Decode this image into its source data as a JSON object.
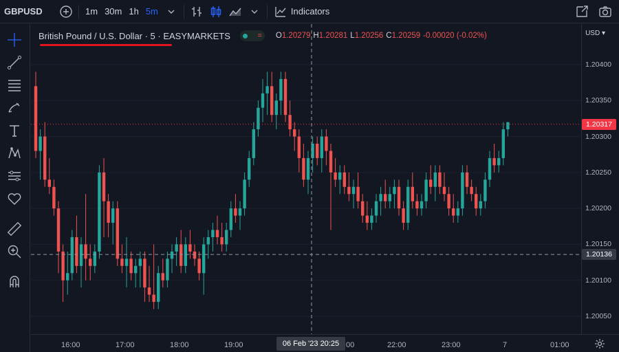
{
  "header": {
    "symbol": "GBPUSD",
    "intervals": [
      {
        "label": "1m",
        "active": false
      },
      {
        "label": "30m",
        "active": false
      },
      {
        "label": "1h",
        "active": false
      },
      {
        "label": "5m",
        "active": true
      }
    ],
    "indicators_label": "Indicators"
  },
  "legend": {
    "title": "British Pound / U.S. Dollar · 5 · EASYMARKETS",
    "ohlc": {
      "o_key": "O",
      "o": "1.20279",
      "h_key": "H",
      "h": "1.20281",
      "l_key": "L",
      "l": "1.20256",
      "c_key": "C",
      "c": "1.20259",
      "change": "-0.00020 (-0.02%)"
    }
  },
  "price_scale": {
    "currency": "USD",
    "labels": [
      "1.20400",
      "1.20350",
      "1.20300",
      "1.20250",
      "1.20200",
      "1.20150",
      "1.20100",
      "1.20050"
    ],
    "last_price": "1.20317",
    "crosshair_price": "1.20136"
  },
  "time_scale": {
    "labels": [
      "16:00",
      "17:00",
      "18:00",
      "19:00",
      "22:00",
      "23:00",
      "7",
      "01:00"
    ],
    "partial_label": "00",
    "crosshair_time": "06 Feb '23   20:25"
  },
  "colors": {
    "up": "#26a69a",
    "down": "#ef5350",
    "background": "#131722",
    "accent": "#2962ff",
    "last_price": "#f23645"
  },
  "icons": {
    "top": [
      "add-symbol-icon",
      "chevron-down-icon",
      "bar-style-icon",
      "candles-icon",
      "area-icon",
      "indicators-icon",
      "fullscreen-icon",
      "camera-icon"
    ],
    "left": [
      "crosshair-icon",
      "trend-line-icon",
      "fib-icon",
      "brush-icon",
      "text-icon",
      "pattern-icon",
      "prediction-icon",
      "heart-icon",
      "ruler-icon",
      "zoom-in-icon",
      "magnet-icon"
    ]
  },
  "chart_data": {
    "type": "candlestick",
    "symbol": "GBPUSD",
    "interval": "5",
    "ylim": [
      1.2001,
      1.2045
    ],
    "last_price": 1.20317,
    "crosshair_price": 1.20136,
    "x_ticks": [
      "16:00",
      "17:00",
      "18:00",
      "19:00",
      "20:00",
      "22:00",
      "23:00",
      "7",
      "01:00"
    ],
    "candles": [
      [
        1.2037,
        1.2039,
        1.2027,
        1.2028
      ],
      [
        1.2028,
        1.2031,
        1.2024,
        1.203
      ],
      [
        1.203,
        1.2032,
        1.2023,
        1.2024
      ],
      [
        1.2024,
        1.2027,
        1.2022,
        1.2023
      ],
      [
        1.2023,
        1.2024,
        1.2019,
        1.202
      ],
      [
        1.202,
        1.2021,
        1.2011,
        1.2014
      ],
      [
        1.2014,
        1.2015,
        1.2007,
        1.201
      ],
      [
        1.201,
        1.2014,
        1.2008,
        1.2011
      ],
      [
        1.2011,
        1.2017,
        1.201,
        1.2016
      ],
      [
        1.2016,
        1.2019,
        1.2011,
        1.2012
      ],
      [
        1.2012,
        1.2016,
        1.2009,
        1.2015
      ],
      [
        1.2015,
        1.2022,
        1.201,
        1.2013
      ],
      [
        1.2013,
        1.2015,
        1.201,
        1.2012
      ],
      [
        1.2012,
        1.2015,
        1.2011,
        1.2014
      ],
      [
        1.2014,
        1.2026,
        1.2013,
        1.2025
      ],
      [
        1.2025,
        1.2027,
        1.2016,
        1.2021
      ],
      [
        1.2021,
        1.2022,
        1.2016,
        1.2018
      ],
      [
        1.2018,
        1.2021,
        1.2015,
        1.202
      ],
      [
        1.202,
        1.2021,
        1.2012,
        1.2013
      ],
      [
        1.2013,
        1.2015,
        1.2011,
        1.2012
      ],
      [
        1.2012,
        1.2016,
        1.2009,
        1.2013
      ],
      [
        1.2013,
        1.2014,
        1.201,
        1.2011
      ],
      [
        1.2011,
        1.2013,
        1.2009,
        1.2012
      ],
      [
        1.2012,
        1.2014,
        1.2009,
        1.2013
      ],
      [
        1.2013,
        1.2014,
        1.2007,
        1.2009
      ],
      [
        1.2009,
        1.2012,
        1.2007,
        1.2008
      ],
      [
        1.2008,
        1.2015,
        1.2006,
        1.2007
      ],
      [
        1.2007,
        1.2012,
        1.2006,
        1.2011
      ],
      [
        1.2011,
        1.2013,
        1.2009,
        1.201
      ],
      [
        1.201,
        1.2014,
        1.2009,
        1.2013
      ],
      [
        1.2013,
        1.2015,
        1.2011,
        1.2014
      ],
      [
        1.2014,
        1.2016,
        1.2012,
        1.2015
      ],
      [
        1.2015,
        1.2017,
        1.2011,
        1.2012
      ],
      [
        1.2012,
        1.2016,
        1.2011,
        1.2015
      ],
      [
        1.2015,
        1.2017,
        1.2013,
        1.2014
      ],
      [
        1.2014,
        1.2015,
        1.2012,
        1.2013
      ],
      [
        1.2013,
        1.2014,
        1.201,
        1.2011
      ],
      [
        1.2011,
        1.2016,
        1.2008,
        1.2015
      ],
      [
        1.2015,
        1.2017,
        1.2013,
        1.2016
      ],
      [
        1.2016,
        1.2018,
        1.2014,
        1.2017
      ],
      [
        1.2017,
        1.2019,
        1.2015,
        1.2016
      ],
      [
        1.2016,
        1.2018,
        1.2014,
        1.2015
      ],
      [
        1.2015,
        1.2018,
        1.2014,
        1.2017
      ],
      [
        1.2017,
        1.2021,
        1.2016,
        1.202
      ],
      [
        1.202,
        1.2022,
        1.2018,
        1.2019
      ],
      [
        1.2019,
        1.2021,
        1.2017,
        1.202
      ],
      [
        1.202,
        1.2025,
        1.2019,
        1.2024
      ],
      [
        1.2024,
        1.2028,
        1.2023,
        1.2027
      ],
      [
        1.2027,
        1.2032,
        1.2026,
        1.2031
      ],
      [
        1.2031,
        1.2035,
        1.203,
        1.2034
      ],
      [
        1.2034,
        1.2038,
        1.2032,
        1.2036
      ],
      [
        1.2036,
        1.2039,
        1.2033,
        1.2037
      ],
      [
        1.2037,
        1.2039,
        1.2032,
        1.2033
      ],
      [
        1.2033,
        1.2036,
        1.2031,
        1.2035
      ],
      [
        1.2035,
        1.2039,
        1.2033,
        1.2038
      ],
      [
        1.2038,
        1.2039,
        1.2032,
        1.2033
      ],
      [
        1.2033,
        1.2035,
        1.203,
        1.2031
      ],
      [
        1.2031,
        1.2032,
        1.2028,
        1.203
      ],
      [
        1.203,
        1.2031,
        1.2025,
        1.2027
      ],
      [
        1.2027,
        1.2029,
        1.2023,
        1.2024
      ],
      [
        1.2024,
        1.2028,
        1.2022,
        1.2027
      ],
      [
        1.2027,
        1.203,
        1.2025,
        1.2029
      ],
      [
        1.2029,
        1.203,
        1.2026,
        1.2027
      ],
      [
        1.2027,
        1.2031,
        1.2025,
        1.203
      ],
      [
        1.203,
        1.2031,
        1.2026,
        1.2028
      ],
      [
        1.2028,
        1.2029,
        1.2017,
        1.2025
      ],
      [
        1.2025,
        1.2027,
        1.2023,
        1.2024
      ],
      [
        1.2024,
        1.2026,
        1.2022,
        1.2025
      ],
      [
        1.2025,
        1.2026,
        1.2022,
        1.2023
      ],
      [
        1.2023,
        1.2025,
        1.2021,
        1.2022
      ],
      [
        1.2022,
        1.2024,
        1.202,
        1.2023
      ],
      [
        1.2023,
        1.2025,
        1.202,
        1.2021
      ],
      [
        1.2021,
        1.2022,
        1.2018,
        1.2019
      ],
      [
        1.2019,
        1.2021,
        1.2017,
        1.2018
      ],
      [
        1.2018,
        1.202,
        1.2017,
        1.2019
      ],
      [
        1.2019,
        1.2022,
        1.2018,
        1.2021
      ],
      [
        1.2021,
        1.2023,
        1.2019,
        1.2022
      ],
      [
        1.2022,
        1.2024,
        1.202,
        1.2021
      ],
      [
        1.2021,
        1.2023,
        1.202,
        1.2022
      ],
      [
        1.2022,
        1.2024,
        1.202,
        1.2023
      ],
      [
        1.2023,
        1.2024,
        1.2019,
        1.202
      ],
      [
        1.202,
        1.2021,
        1.2017,
        1.2018
      ],
      [
        1.2018,
        1.2024,
        1.2017,
        1.2023
      ],
      [
        1.2023,
        1.2025,
        1.202,
        1.2021
      ],
      [
        1.2021,
        1.2022,
        1.2019,
        1.202
      ],
      [
        1.202,
        1.2022,
        1.2019,
        1.2021
      ],
      [
        1.2021,
        1.2025,
        1.202,
        1.2024
      ],
      [
        1.2024,
        1.2026,
        1.2022,
        1.2023
      ],
      [
        1.2023,
        1.2026,
        1.2021,
        1.2025
      ],
      [
        1.2025,
        1.2026,
        1.2022,
        1.2023
      ],
      [
        1.2023,
        1.2025,
        1.2021,
        1.2022
      ],
      [
        1.2022,
        1.2023,
        1.2019,
        1.202
      ],
      [
        1.202,
        1.2022,
        1.2018,
        1.2019
      ],
      [
        1.2019,
        1.2021,
        1.2018,
        1.202
      ],
      [
        1.202,
        1.2026,
        1.2019,
        1.2025
      ],
      [
        1.2025,
        1.2026,
        1.2022,
        1.2023
      ],
      [
        1.2023,
        1.2024,
        1.2021,
        1.2022
      ],
      [
        1.2022,
        1.2023,
        1.2019,
        1.202
      ],
      [
        1.202,
        1.2022,
        1.2019,
        1.2021
      ],
      [
        1.2021,
        1.2025,
        1.202,
        1.2024
      ],
      [
        1.2024,
        1.2028,
        1.2023,
        1.2027
      ],
      [
        1.2027,
        1.2029,
        1.2025,
        1.2026
      ],
      [
        1.2026,
        1.2028,
        1.2025,
        1.2027
      ],
      [
        1.2027,
        1.2032,
        1.2026,
        1.2031
      ],
      [
        1.2031,
        1.2032,
        1.203,
        1.2032
      ]
    ]
  }
}
